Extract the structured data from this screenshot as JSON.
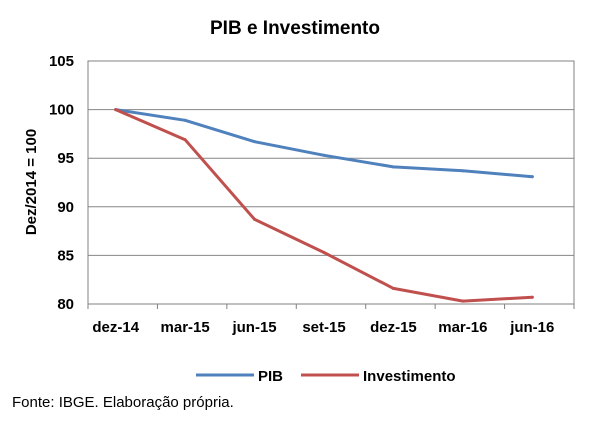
{
  "chart_data": {
    "type": "line",
    "title": "PIB e Investimento",
    "xlabel": "",
    "ylabel": "Dez/2014 = 100",
    "categories": [
      "dez-14",
      "mar-15",
      "jun-15",
      "set-15",
      "dez-15",
      "mar-16",
      "jun-16"
    ],
    "ylim": [
      80,
      105
    ],
    "yticks": [
      80,
      85,
      90,
      95,
      100,
      105
    ],
    "grid": true,
    "legend_position": "bottom",
    "series": [
      {
        "name": "PIB",
        "color": "#4F81BD",
        "values": [
          100,
          98.9,
          96.7,
          95.3,
          94.1,
          93.7,
          93.1
        ]
      },
      {
        "name": "Investimento",
        "color": "#C0504D",
        "values": [
          100,
          96.9,
          88.7,
          85.3,
          81.6,
          80.3,
          80.7
        ]
      }
    ]
  },
  "footer": {
    "source": "Fonte: IBGE. Elaboração própria."
  }
}
